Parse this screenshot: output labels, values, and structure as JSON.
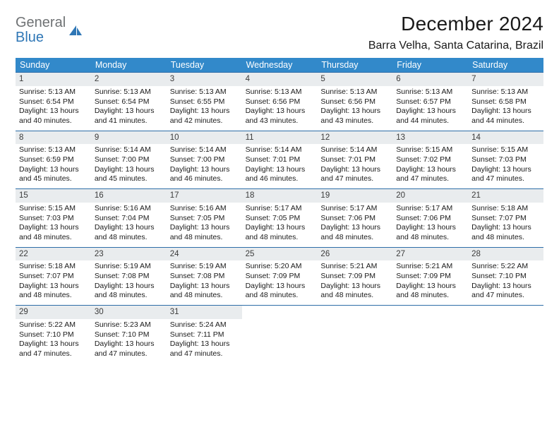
{
  "brand": {
    "name_top": "General",
    "name_bottom": "Blue"
  },
  "title": "December 2024",
  "location": "Barra Velha, Santa Catarina, Brazil",
  "colors": {
    "header_bg": "#3289ca",
    "cell_border": "#2e6ea8",
    "date_bg": "#e9ecee",
    "logo_gray": "#6f7274",
    "logo_blue": "#2f77b6"
  },
  "dow": [
    "Sunday",
    "Monday",
    "Tuesday",
    "Wednesday",
    "Thursday",
    "Friday",
    "Saturday"
  ],
  "days": [
    {
      "n": 1,
      "sr": "5:13 AM",
      "ss": "6:54 PM",
      "dl": "13 hours and 40 minutes."
    },
    {
      "n": 2,
      "sr": "5:13 AM",
      "ss": "6:54 PM",
      "dl": "13 hours and 41 minutes."
    },
    {
      "n": 3,
      "sr": "5:13 AM",
      "ss": "6:55 PM",
      "dl": "13 hours and 42 minutes."
    },
    {
      "n": 4,
      "sr": "5:13 AM",
      "ss": "6:56 PM",
      "dl": "13 hours and 43 minutes."
    },
    {
      "n": 5,
      "sr": "5:13 AM",
      "ss": "6:56 PM",
      "dl": "13 hours and 43 minutes."
    },
    {
      "n": 6,
      "sr": "5:13 AM",
      "ss": "6:57 PM",
      "dl": "13 hours and 44 minutes."
    },
    {
      "n": 7,
      "sr": "5:13 AM",
      "ss": "6:58 PM",
      "dl": "13 hours and 44 minutes."
    },
    {
      "n": 8,
      "sr": "5:13 AM",
      "ss": "6:59 PM",
      "dl": "13 hours and 45 minutes."
    },
    {
      "n": 9,
      "sr": "5:14 AM",
      "ss": "7:00 PM",
      "dl": "13 hours and 45 minutes."
    },
    {
      "n": 10,
      "sr": "5:14 AM",
      "ss": "7:00 PM",
      "dl": "13 hours and 46 minutes."
    },
    {
      "n": 11,
      "sr": "5:14 AM",
      "ss": "7:01 PM",
      "dl": "13 hours and 46 minutes."
    },
    {
      "n": 12,
      "sr": "5:14 AM",
      "ss": "7:01 PM",
      "dl": "13 hours and 47 minutes."
    },
    {
      "n": 13,
      "sr": "5:15 AM",
      "ss": "7:02 PM",
      "dl": "13 hours and 47 minutes."
    },
    {
      "n": 14,
      "sr": "5:15 AM",
      "ss": "7:03 PM",
      "dl": "13 hours and 47 minutes."
    },
    {
      "n": 15,
      "sr": "5:15 AM",
      "ss": "7:03 PM",
      "dl": "13 hours and 48 minutes."
    },
    {
      "n": 16,
      "sr": "5:16 AM",
      "ss": "7:04 PM",
      "dl": "13 hours and 48 minutes."
    },
    {
      "n": 17,
      "sr": "5:16 AM",
      "ss": "7:05 PM",
      "dl": "13 hours and 48 minutes."
    },
    {
      "n": 18,
      "sr": "5:17 AM",
      "ss": "7:05 PM",
      "dl": "13 hours and 48 minutes."
    },
    {
      "n": 19,
      "sr": "5:17 AM",
      "ss": "7:06 PM",
      "dl": "13 hours and 48 minutes."
    },
    {
      "n": 20,
      "sr": "5:17 AM",
      "ss": "7:06 PM",
      "dl": "13 hours and 48 minutes."
    },
    {
      "n": 21,
      "sr": "5:18 AM",
      "ss": "7:07 PM",
      "dl": "13 hours and 48 minutes."
    },
    {
      "n": 22,
      "sr": "5:18 AM",
      "ss": "7:07 PM",
      "dl": "13 hours and 48 minutes."
    },
    {
      "n": 23,
      "sr": "5:19 AM",
      "ss": "7:08 PM",
      "dl": "13 hours and 48 minutes."
    },
    {
      "n": 24,
      "sr": "5:19 AM",
      "ss": "7:08 PM",
      "dl": "13 hours and 48 minutes."
    },
    {
      "n": 25,
      "sr": "5:20 AM",
      "ss": "7:09 PM",
      "dl": "13 hours and 48 minutes."
    },
    {
      "n": 26,
      "sr": "5:21 AM",
      "ss": "7:09 PM",
      "dl": "13 hours and 48 minutes."
    },
    {
      "n": 27,
      "sr": "5:21 AM",
      "ss": "7:09 PM",
      "dl": "13 hours and 48 minutes."
    },
    {
      "n": 28,
      "sr": "5:22 AM",
      "ss": "7:10 PM",
      "dl": "13 hours and 47 minutes."
    },
    {
      "n": 29,
      "sr": "5:22 AM",
      "ss": "7:10 PM",
      "dl": "13 hours and 47 minutes."
    },
    {
      "n": 30,
      "sr": "5:23 AM",
      "ss": "7:10 PM",
      "dl": "13 hours and 47 minutes."
    },
    {
      "n": 31,
      "sr": "5:24 AM",
      "ss": "7:11 PM",
      "dl": "13 hours and 47 minutes."
    }
  ],
  "labels": {
    "sunrise": "Sunrise:",
    "sunset": "Sunset:",
    "daylight": "Daylight:"
  },
  "layout": {
    "start_dow": 0,
    "trailing_blanks": 4
  }
}
